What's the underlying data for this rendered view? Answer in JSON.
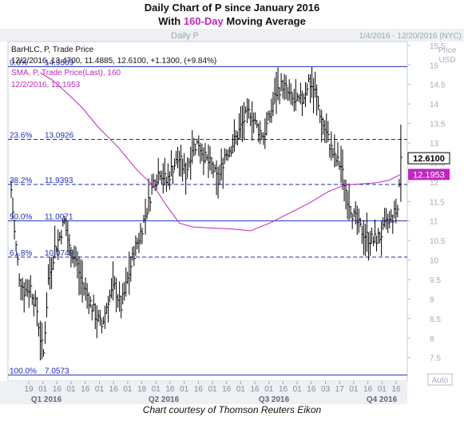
{
  "title_line1": "Daily Chart of P since January 2016",
  "title_line2_pre": "With ",
  "title_line2_highlight": "160-Day",
  "title_line2_post": " Moving Average",
  "credit": "Chart courtesy of Thomson Reuters Eikon",
  "chart_data": {
    "type": "ohlc",
    "panel_title": "Daily P",
    "date_range": "1/4/2016 - 12/20/2016 (NYC)",
    "ylabel": "Price\nUSD",
    "ylim": [
      6.9,
      15.6
    ],
    "yticks": [
      "7.5",
      "8",
      "8.5",
      "9",
      "9.5",
      "10",
      "10.5",
      "11",
      "11.5",
      "12",
      "12.5",
      "13",
      "13.5",
      "14",
      "14.5",
      "15",
      "15.5"
    ],
    "y_axis_note": "Auto",
    "x_day_ticks": [
      "19",
      "01",
      "16",
      "01",
      "16",
      "01",
      "16",
      "01",
      "18",
      "01",
      "16",
      "01",
      "16",
      "01",
      "16",
      "01",
      "16",
      "01",
      "16",
      "01",
      "16",
      "03",
      "17",
      "01",
      "16",
      "01",
      "16"
    ],
    "x_quarters": [
      "Q1 2016",
      "Q2 2016",
      "Q3 2016",
      "Q4 2016"
    ],
    "legend": {
      "bar_title": "BarHLC, P, Trade Price",
      "bar_values": "12/2/2016, 13.4700, 11.4885, 12.6100, +1.1300, (+9.84%)",
      "sma_title": "SMA, P, Trade Price(Last),  160",
      "sma_values": "12/2/2016, 12.1953"
    },
    "fib_levels": [
      {
        "pct": "0.0%",
        "value": 14.9569,
        "label": "14.9569",
        "style": "solid"
      },
      {
        "pct": "23.6%",
        "value": 13.0926,
        "label": "13.0926",
        "style": "dashed"
      },
      {
        "pct": "38.2%",
        "value": 11.9393,
        "label": "11.9393",
        "style": "dashed"
      },
      {
        "pct": "50.0%",
        "value": 11.0071,
        "label": "11.0071",
        "style": "solid"
      },
      {
        "pct": "61.8%",
        "value": 10.0749,
        "label": "10.0749",
        "style": "dashed"
      },
      {
        "pct": "100.0%",
        "value": 7.0573,
        "label": "7.0573",
        "style": "solid"
      }
    ],
    "last_price": "12.6100",
    "last_price_value": 12.61,
    "sma_last": "12.1953",
    "sma_last_value": 12.1953,
    "price_path": [
      {
        "d": 0,
        "v": 11.8
      },
      {
        "d": 2,
        "v": 10.7
      },
      {
        "d": 5,
        "v": 9.6
      },
      {
        "d": 8,
        "v": 9.2
      },
      {
        "d": 12,
        "v": 9.3
      },
      {
        "d": 16,
        "v": 8.7
      },
      {
        "d": 18,
        "v": 8.0
      },
      {
        "d": 20,
        "v": 7.6
      },
      {
        "d": 23,
        "v": 9.5
      },
      {
        "d": 27,
        "v": 10.3
      },
      {
        "d": 30,
        "v": 10.6
      },
      {
        "d": 33,
        "v": 11.0
      },
      {
        "d": 36,
        "v": 10.3
      },
      {
        "d": 40,
        "v": 10.0
      },
      {
        "d": 44,
        "v": 9.4
      },
      {
        "d": 48,
        "v": 9.0
      },
      {
        "d": 52,
        "v": 8.6
      },
      {
        "d": 56,
        "v": 8.3
      },
      {
        "d": 60,
        "v": 9.0
      },
      {
        "d": 64,
        "v": 9.3
      },
      {
        "d": 68,
        "v": 8.8
      },
      {
        "d": 72,
        "v": 9.5
      },
      {
        "d": 76,
        "v": 10.2
      },
      {
        "d": 80,
        "v": 10.7
      },
      {
        "d": 84,
        "v": 11.3
      },
      {
        "d": 88,
        "v": 12.0
      },
      {
        "d": 92,
        "v": 12.3
      },
      {
        "d": 96,
        "v": 12.0
      },
      {
        "d": 100,
        "v": 12.4
      },
      {
        "d": 104,
        "v": 12.6
      },
      {
        "d": 108,
        "v": 12.2
      },
      {
        "d": 112,
        "v": 12.9
      },
      {
        "d": 116,
        "v": 13.0
      },
      {
        "d": 120,
        "v": 12.6
      },
      {
        "d": 124,
        "v": 12.4
      },
      {
        "d": 128,
        "v": 12.0
      },
      {
        "d": 132,
        "v": 12.7
      },
      {
        "d": 136,
        "v": 12.9
      },
      {
        "d": 140,
        "v": 13.2
      },
      {
        "d": 144,
        "v": 13.6
      },
      {
        "d": 148,
        "v": 13.8
      },
      {
        "d": 152,
        "v": 13.4
      },
      {
        "d": 156,
        "v": 13.2
      },
      {
        "d": 160,
        "v": 13.7
      },
      {
        "d": 164,
        "v": 14.3
      },
      {
        "d": 168,
        "v": 14.5
      },
      {
        "d": 172,
        "v": 14.2
      },
      {
        "d": 176,
        "v": 14.0
      },
      {
        "d": 180,
        "v": 14.1
      },
      {
        "d": 184,
        "v": 14.6
      },
      {
        "d": 188,
        "v": 14.3
      },
      {
        "d": 192,
        "v": 13.6
      },
      {
        "d": 196,
        "v": 13.1
      },
      {
        "d": 200,
        "v": 12.6
      },
      {
        "d": 204,
        "v": 12.4
      },
      {
        "d": 208,
        "v": 11.6
      },
      {
        "d": 212,
        "v": 11.1
      },
      {
        "d": 216,
        "v": 10.8
      },
      {
        "d": 220,
        "v": 10.6
      },
      {
        "d": 224,
        "v": 10.5
      },
      {
        "d": 228,
        "v": 10.6
      },
      {
        "d": 232,
        "v": 10.9
      },
      {
        "d": 236,
        "v": 11.1
      },
      {
        "d": 239,
        "v": 11.3
      },
      {
        "d": 241,
        "v": 12.6
      }
    ],
    "sma_path": [
      {
        "d": 18,
        "v": 14.8
      },
      {
        "d": 26,
        "v": 14.6
      },
      {
        "d": 34,
        "v": 14.3
      },
      {
        "d": 44,
        "v": 13.9
      },
      {
        "d": 54,
        "v": 13.4
      },
      {
        "d": 66,
        "v": 12.9
      },
      {
        "d": 78,
        "v": 12.3
      },
      {
        "d": 88,
        "v": 11.9
      },
      {
        "d": 96,
        "v": 11.4
      },
      {
        "d": 104,
        "v": 10.95
      },
      {
        "d": 112,
        "v": 10.85
      },
      {
        "d": 124,
        "v": 10.82
      },
      {
        "d": 136,
        "v": 10.8
      },
      {
        "d": 148,
        "v": 10.75
      },
      {
        "d": 160,
        "v": 10.95
      },
      {
        "d": 172,
        "v": 11.2
      },
      {
        "d": 184,
        "v": 11.45
      },
      {
        "d": 196,
        "v": 11.75
      },
      {
        "d": 206,
        "v": 11.92
      },
      {
        "d": 216,
        "v": 11.95
      },
      {
        "d": 226,
        "v": 11.98
      },
      {
        "d": 234,
        "v": 12.05
      },
      {
        "d": 241,
        "v": 12.2
      }
    ]
  }
}
